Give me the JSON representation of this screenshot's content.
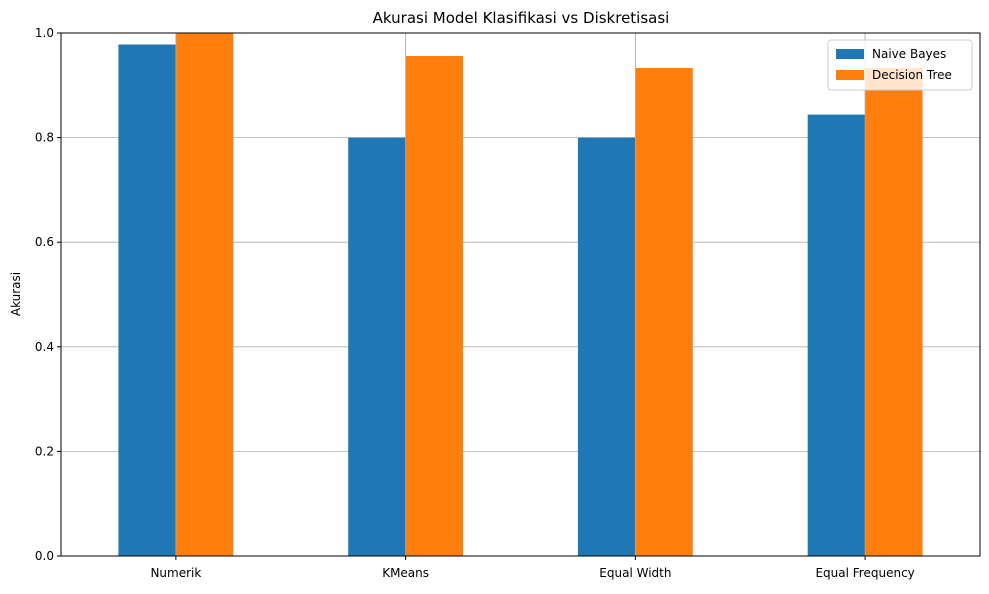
{
  "chart_data": {
    "type": "bar",
    "title": "Akurasi Model Klasifikasi vs Diskretisasi",
    "xlabel": "",
    "ylabel": "Akurasi",
    "categories": [
      "Numerik",
      "KMeans",
      "Equal Width",
      "Equal Frequency"
    ],
    "series": [
      {
        "name": "Naive Bayes",
        "color": "#1f77b4",
        "values": [
          0.978,
          0.8,
          0.8,
          0.844
        ]
      },
      {
        "name": "Decision Tree",
        "color": "#ff7f0e",
        "values": [
          1.0,
          0.956,
          0.933,
          0.933
        ]
      }
    ],
    "ylim": [
      0,
      1.0
    ],
    "yticks": [
      "0.0",
      "0.2",
      "0.4",
      "0.6",
      "0.8",
      "1.0"
    ],
    "grid": true,
    "legend_position": "top-right"
  }
}
